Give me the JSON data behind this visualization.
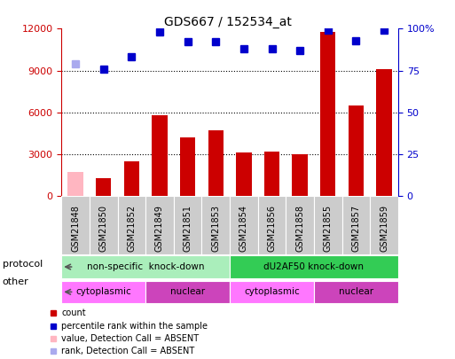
{
  "title": "GDS667 / 152534_at",
  "samples": [
    "GSM21848",
    "GSM21850",
    "GSM21852",
    "GSM21849",
    "GSM21851",
    "GSM21853",
    "GSM21854",
    "GSM21856",
    "GSM21858",
    "GSM21855",
    "GSM21857",
    "GSM21859"
  ],
  "bar_values": [
    1700,
    1300,
    2500,
    5800,
    4200,
    4700,
    3100,
    3200,
    3000,
    11800,
    6500,
    9100
  ],
  "bar_absent": [
    true,
    false,
    false,
    false,
    false,
    false,
    false,
    false,
    false,
    false,
    false,
    false
  ],
  "rank_values": [
    79,
    76,
    83,
    98,
    92,
    92,
    88,
    88,
    87,
    99,
    93,
    99
  ],
  "rank_absent": [
    true,
    false,
    false,
    false,
    false,
    false,
    false,
    false,
    false,
    false,
    false,
    false
  ],
  "ylim_left": [
    0,
    12000
  ],
  "ylim_right": [
    0,
    100
  ],
  "yticks_left": [
    0,
    3000,
    6000,
    9000,
    12000
  ],
  "yticks_right": [
    0,
    25,
    50,
    75,
    100
  ],
  "protocol_groups": [
    {
      "label": "non-specific  knock-down",
      "start": 0,
      "end": 6,
      "color": "#AAEEBB"
    },
    {
      "label": "dU2AF50 knock-down",
      "start": 6,
      "end": 12,
      "color": "#33CC55"
    }
  ],
  "other_groups": [
    {
      "label": "cytoplasmic",
      "start": 0,
      "end": 3,
      "color": "#FF77FF"
    },
    {
      "label": "nuclear",
      "start": 3,
      "end": 6,
      "color": "#CC44BB"
    },
    {
      "label": "cytoplasmic",
      "start": 6,
      "end": 9,
      "color": "#FF77FF"
    },
    {
      "label": "nuclear",
      "start": 9,
      "end": 12,
      "color": "#CC44BB"
    }
  ],
  "bar_color_present": "#CC0000",
  "bar_color_absent": "#FFB6C1",
  "rank_color_present": "#0000CC",
  "rank_color_absent": "#AAAAEE",
  "grid_color": "#000000",
  "left_axis_color": "#CC0000",
  "right_axis_color": "#0000CC",
  "bg_color": "#FFFFFF",
  "xtick_bg_color": "#CCCCCC",
  "legend_items": [
    {
      "color": "#CC0000",
      "label": "count"
    },
    {
      "color": "#0000CC",
      "label": "percentile rank within the sample"
    },
    {
      "color": "#FFB6C1",
      "label": "value, Detection Call = ABSENT"
    },
    {
      "color": "#AAAAEE",
      "label": "rank, Detection Call = ABSENT"
    }
  ]
}
